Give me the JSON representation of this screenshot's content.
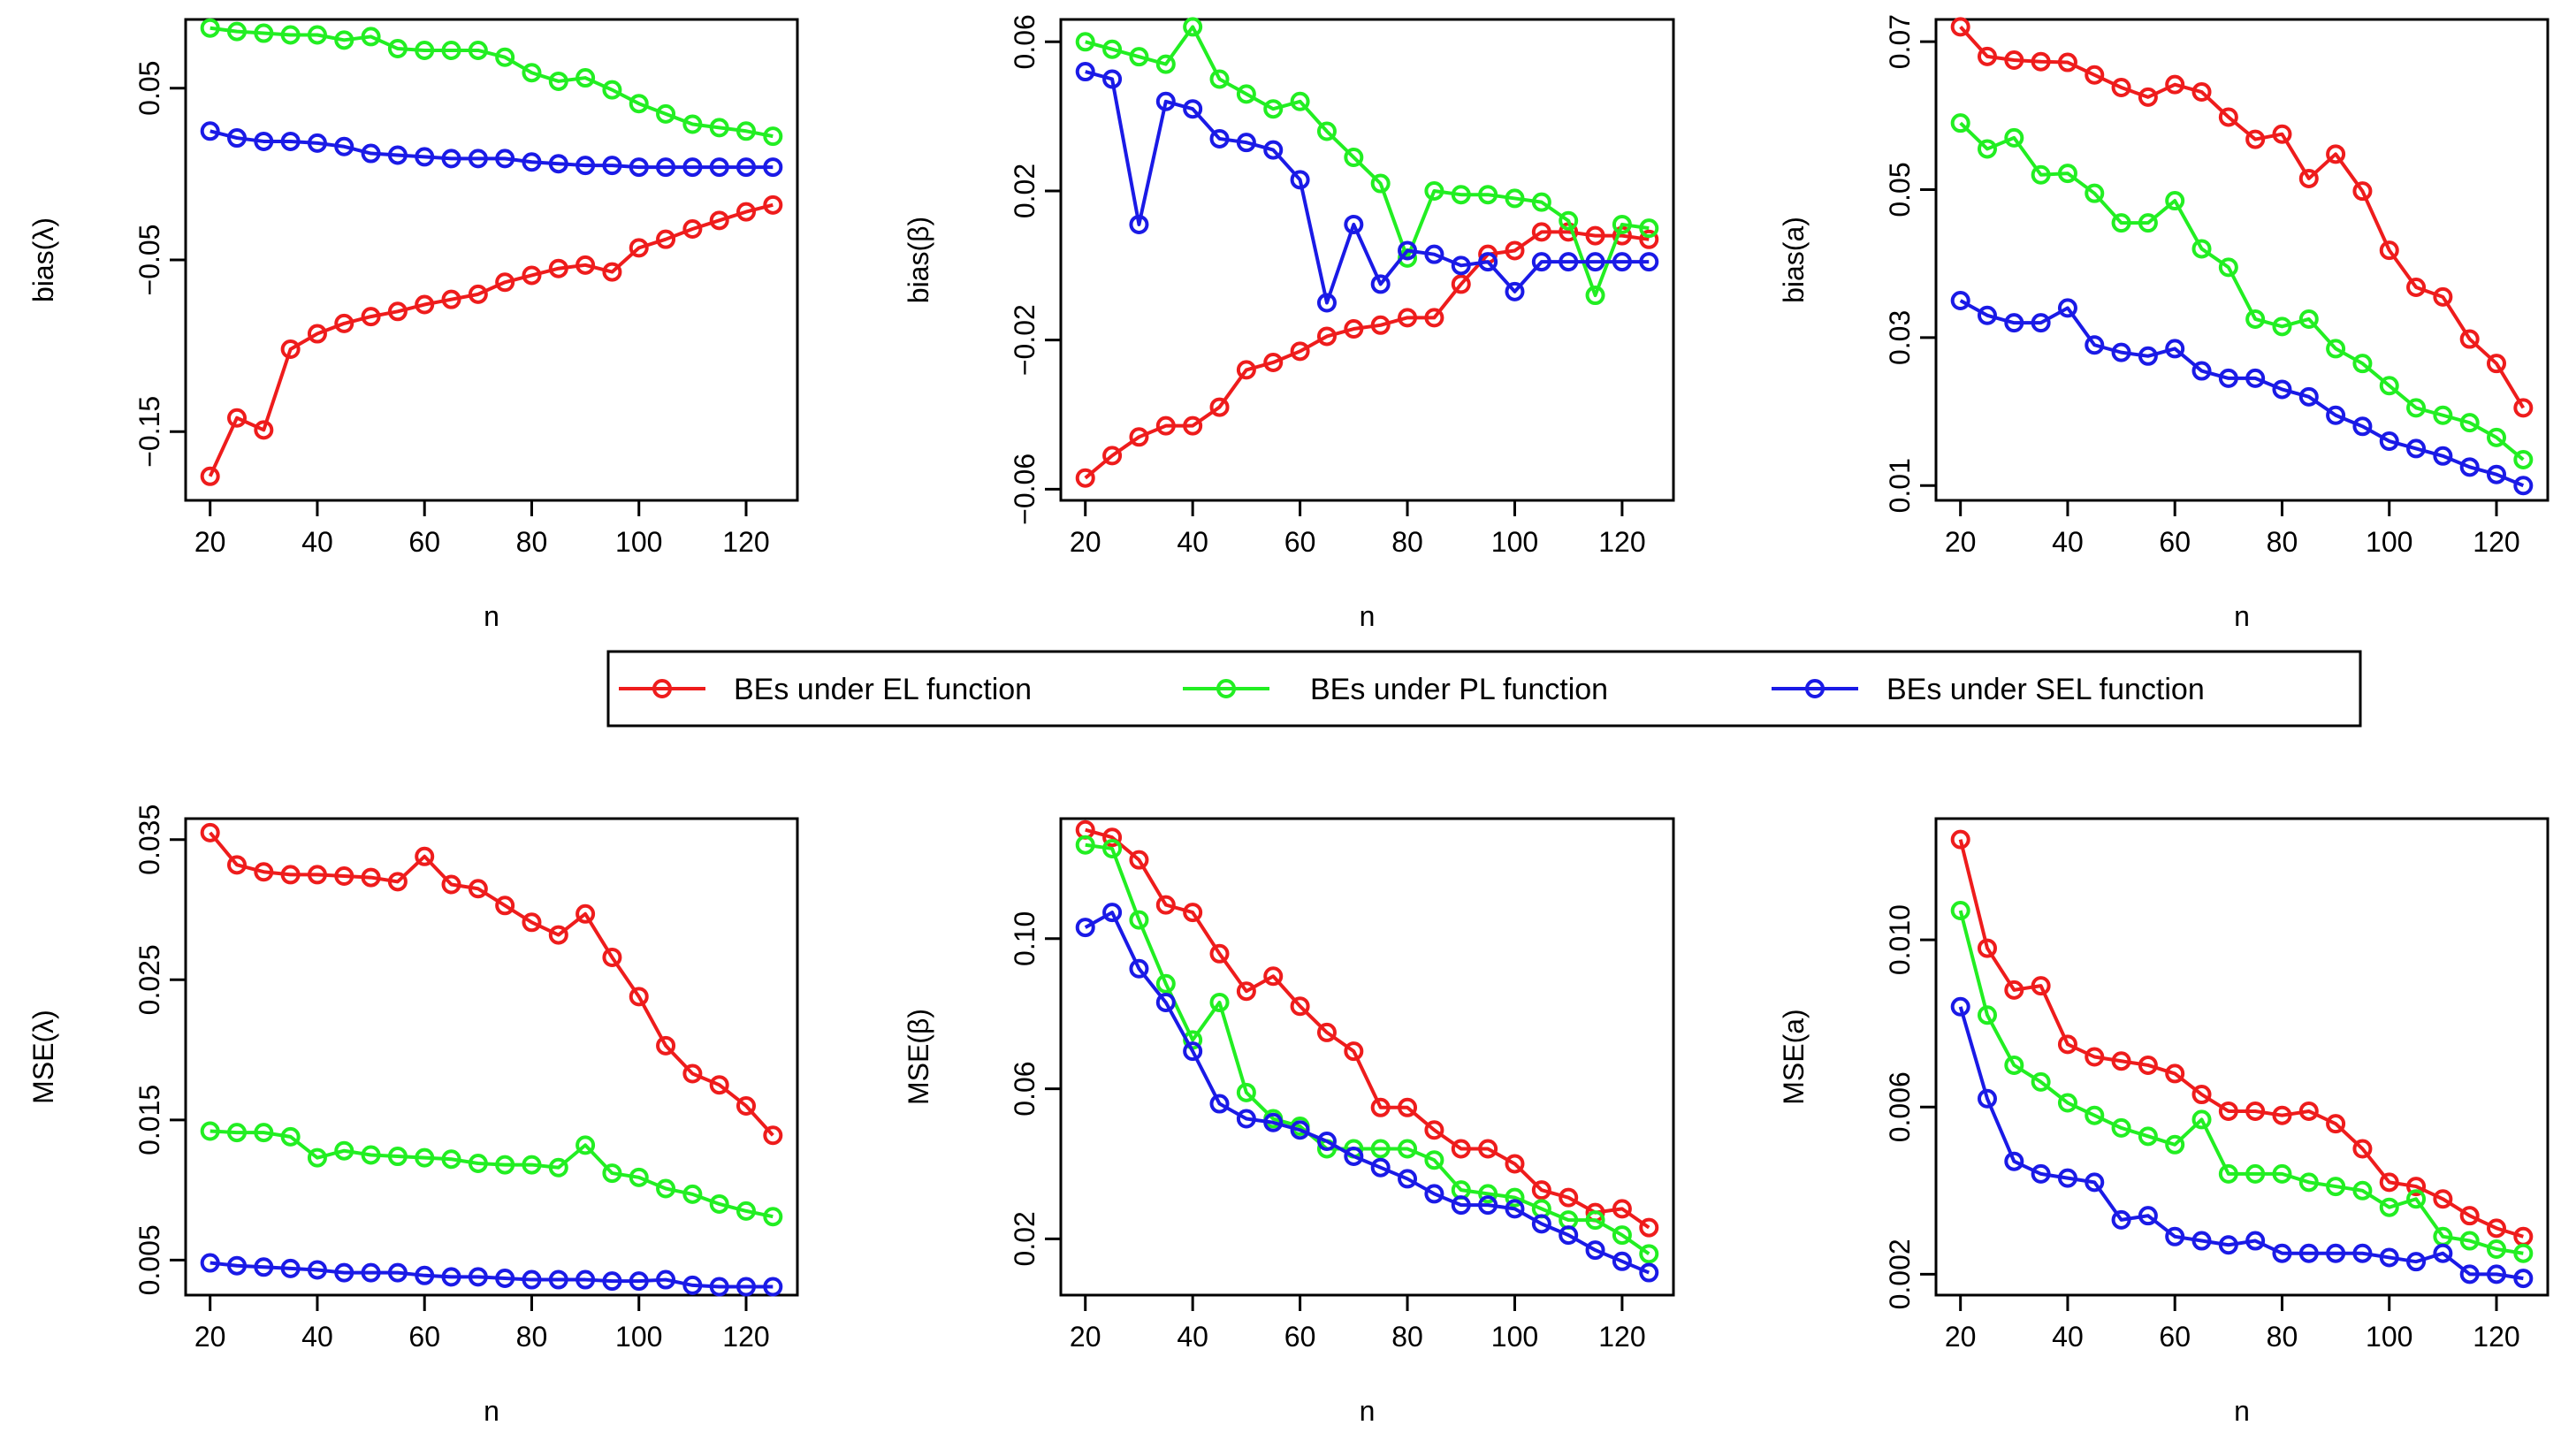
{
  "figure": {
    "legend": {
      "placement": "center",
      "entries": [
        {
          "label": "BEs under EL function",
          "color": "#ee1c1c"
        },
        {
          "label": "BEs under PL function",
          "color": "#22ee22"
        },
        {
          "label": "BEs under SEL function",
          "color": "#1a1ae6"
        }
      ]
    }
  },
  "chart_data": [
    {
      "type": "line",
      "xlabel": "n",
      "ylabel": "bias(λ)",
      "xlim": [
        20,
        125
      ],
      "ylim": [
        -0.19,
        0.09
      ],
      "xticks": [
        20,
        40,
        60,
        80,
        100,
        120
      ],
      "xticklabels": [
        "20",
        "40",
        "60",
        "80",
        "100",
        "120"
      ],
      "yticks": [
        0.05,
        -0.05,
        -0.15
      ],
      "yticklabels": [
        "0.05",
        "−0.05",
        "−0.15"
      ],
      "x": [
        20,
        25,
        30,
        35,
        40,
        45,
        50,
        55,
        60,
        65,
        70,
        75,
        80,
        85,
        90,
        95,
        100,
        105,
        110,
        115,
        120,
        125
      ],
      "series": [
        {
          "name": "BEs under EL function",
          "color": "#ee1c1c",
          "values": [
            -0.176,
            -0.142,
            -0.149,
            -0.102,
            -0.093,
            -0.087,
            -0.083,
            -0.08,
            -0.076,
            -0.073,
            -0.07,
            -0.063,
            -0.059,
            -0.055,
            -0.053,
            -0.057,
            -0.043,
            -0.038,
            -0.032,
            -0.027,
            -0.022,
            -0.018
          ]
        },
        {
          "name": "BEs under PL function",
          "color": "#22ee22",
          "values": [
            0.085,
            0.083,
            0.082,
            0.081,
            0.081,
            0.078,
            0.08,
            0.073,
            0.072,
            0.072,
            0.072,
            0.068,
            0.059,
            0.054,
            0.056,
            0.049,
            0.041,
            0.035,
            0.029,
            0.027,
            0.025,
            0.022
          ]
        },
        {
          "name": "BEs under SEL function",
          "color": "#1a1ae6",
          "values": [
            0.025,
            0.021,
            0.019,
            0.019,
            0.018,
            0.016,
            0.012,
            0.011,
            0.01,
            0.009,
            0.009,
            0.009,
            0.007,
            0.006,
            0.005,
            0.005,
            0.004,
            0.004,
            0.004,
            0.004,
            0.004,
            0.004
          ]
        }
      ]
    },
    {
      "type": "line",
      "xlabel": "n",
      "ylabel": "bias(β)",
      "xlim": [
        20,
        125
      ],
      "ylim": [
        -0.063,
        0.066
      ],
      "xticks": [
        20,
        40,
        60,
        80,
        100,
        120
      ],
      "xticklabels": [
        "20",
        "40",
        "60",
        "80",
        "100",
        "120"
      ],
      "yticks": [
        0.06,
        0.02,
        -0.02,
        -0.06
      ],
      "yticklabels": [
        "0.06",
        "0.02",
        "−0.02",
        "−0.06"
      ],
      "x": [
        20,
        25,
        30,
        35,
        40,
        45,
        50,
        55,
        60,
        65,
        70,
        75,
        80,
        85,
        90,
        95,
        100,
        105,
        110,
        115,
        120,
        125
      ],
      "series": [
        {
          "name": "BEs under EL function",
          "color": "#ee1c1c",
          "values": [
            -0.057,
            -0.051,
            -0.046,
            -0.043,
            -0.043,
            -0.038,
            -0.028,
            -0.026,
            -0.023,
            -0.019,
            -0.017,
            -0.016,
            -0.014,
            -0.014,
            -0.005,
            0.003,
            0.004,
            0.009,
            0.009,
            0.008,
            0.008,
            0.007
          ]
        },
        {
          "name": "BEs under PL function",
          "color": "#22ee22",
          "values": [
            0.06,
            0.058,
            0.056,
            0.054,
            0.064,
            0.05,
            0.046,
            0.042,
            0.044,
            0.036,
            0.029,
            0.022,
            0.002,
            0.02,
            0.019,
            0.019,
            0.018,
            0.017,
            0.012,
            -0.008,
            0.011,
            0.01
          ]
        },
        {
          "name": "BEs under SEL function",
          "color": "#1a1ae6",
          "values": [
            0.052,
            0.05,
            0.011,
            0.044,
            0.042,
            0.034,
            0.033,
            0.031,
            0.023,
            -0.01,
            0.011,
            -0.005,
            0.004,
            0.003,
            0.0,
            0.001,
            -0.007,
            0.001,
            0.001,
            0.001,
            0.001,
            0.001
          ]
        }
      ]
    },
    {
      "type": "line",
      "xlabel": "n",
      "ylabel": "bias(a)",
      "xlim": [
        20,
        125
      ],
      "ylim": [
        0.008,
        0.073
      ],
      "xticks": [
        20,
        40,
        60,
        80,
        100,
        120
      ],
      "xticklabels": [
        "20",
        "40",
        "60",
        "80",
        "100",
        "120"
      ],
      "yticks": [
        0.07,
        0.05,
        0.03,
        0.01
      ],
      "yticklabels": [
        "0.07",
        "0.05",
        "0.03",
        "0.01"
      ],
      "x": [
        20,
        25,
        30,
        35,
        40,
        45,
        50,
        55,
        60,
        65,
        70,
        75,
        80,
        85,
        90,
        95,
        100,
        105,
        110,
        115,
        120,
        125
      ],
      "series": [
        {
          "name": "BEs under EL function",
          "color": "#ee1c1c",
          "values": [
            0.072,
            0.068,
            0.0675,
            0.0673,
            0.0672,
            0.0655,
            0.0638,
            0.0625,
            0.0642,
            0.0632,
            0.0598,
            0.0568,
            0.0575,
            0.0515,
            0.0548,
            0.0498,
            0.0418,
            0.0368,
            0.0355,
            0.0298,
            0.0265,
            0.0205
          ]
        },
        {
          "name": "BEs under PL function",
          "color": "#22ee22",
          "values": [
            0.059,
            0.0555,
            0.057,
            0.052,
            0.0522,
            0.0495,
            0.0455,
            0.0455,
            0.0485,
            0.042,
            0.0395,
            0.0325,
            0.0315,
            0.0325,
            0.0285,
            0.0265,
            0.0235,
            0.0205,
            0.0195,
            0.0185,
            0.0165,
            0.0135
          ]
        },
        {
          "name": "BEs under SEL function",
          "color": "#1a1ae6",
          "values": [
            0.035,
            0.033,
            0.032,
            0.032,
            0.034,
            0.029,
            0.028,
            0.0275,
            0.0285,
            0.0255,
            0.0245,
            0.0245,
            0.023,
            0.022,
            0.0195,
            0.018,
            0.016,
            0.015,
            0.014,
            0.0125,
            0.0115,
            0.01
          ]
        }
      ]
    },
    {
      "type": "line",
      "xlabel": "n",
      "ylabel": "MSE(λ)",
      "xlim": [
        20,
        125
      ],
      "ylim": [
        0.0025,
        0.0365
      ],
      "xticks": [
        20,
        40,
        60,
        80,
        100,
        120
      ],
      "xticklabels": [
        "20",
        "40",
        "60",
        "80",
        "100",
        "120"
      ],
      "yticks": [
        0.035,
        0.025,
        0.015,
        0.005
      ],
      "yticklabels": [
        "0.035",
        "0.025",
        "0.015",
        "0.005"
      ],
      "x": [
        20,
        25,
        30,
        35,
        40,
        45,
        50,
        55,
        60,
        65,
        70,
        75,
        80,
        85,
        90,
        95,
        100,
        105,
        110,
        115,
        120,
        125
      ],
      "series": [
        {
          "name": "BEs under EL function",
          "color": "#ee1c1c",
          "values": [
            0.0355,
            0.0332,
            0.0327,
            0.0325,
            0.0325,
            0.0324,
            0.0323,
            0.032,
            0.0338,
            0.0318,
            0.0315,
            0.0303,
            0.0291,
            0.0282,
            0.0297,
            0.0266,
            0.0238,
            0.0203,
            0.0183,
            0.0175,
            0.016,
            0.0139
          ]
        },
        {
          "name": "BEs under PL function",
          "color": "#22ee22",
          "values": [
            0.0142,
            0.0141,
            0.0141,
            0.0138,
            0.0123,
            0.0128,
            0.0125,
            0.0124,
            0.0123,
            0.0122,
            0.0119,
            0.0118,
            0.0118,
            0.0116,
            0.0132,
            0.0112,
            0.0109,
            0.0101,
            0.0097,
            0.009,
            0.0085,
            0.0081
          ]
        },
        {
          "name": "BEs under SEL function",
          "color": "#1a1ae6",
          "values": [
            0.0048,
            0.0046,
            0.0045,
            0.0044,
            0.0043,
            0.0041,
            0.0041,
            0.0041,
            0.0039,
            0.0038,
            0.0038,
            0.0037,
            0.0036,
            0.0036,
            0.0036,
            0.0035,
            0.0035,
            0.0036,
            0.0032,
            0.0031,
            0.0031,
            0.0031
          ]
        }
      ]
    },
    {
      "type": "line",
      "xlabel": "n",
      "ylabel": "MSE(β)",
      "xlim": [
        20,
        125
      ],
      "ylim": [
        0.005,
        0.132
      ],
      "xticks": [
        20,
        40,
        60,
        80,
        100,
        120
      ],
      "xticklabels": [
        "20",
        "40",
        "60",
        "80",
        "100",
        "120"
      ],
      "yticks": [
        0.1,
        0.06,
        0.02
      ],
      "yticklabels": [
        "0.10",
        "0.06",
        "0.02"
      ],
      "x": [
        20,
        25,
        30,
        35,
        40,
        45,
        50,
        55,
        60,
        65,
        70,
        75,
        80,
        85,
        90,
        95,
        100,
        105,
        110,
        115,
        120,
        125
      ],
      "series": [
        {
          "name": "BEs under EL function",
          "color": "#ee1c1c",
          "values": [
            0.129,
            0.127,
            0.121,
            0.109,
            0.107,
            0.096,
            0.086,
            0.09,
            0.082,
            0.075,
            0.07,
            0.055,
            0.055,
            0.049,
            0.044,
            0.044,
            0.04,
            0.033,
            0.031,
            0.027,
            0.028,
            0.023
          ]
        },
        {
          "name": "BEs under PL function",
          "color": "#22ee22",
          "values": [
            0.125,
            0.124,
            0.105,
            0.088,
            0.073,
            0.083,
            0.059,
            0.052,
            0.05,
            0.044,
            0.044,
            0.044,
            0.044,
            0.041,
            0.033,
            0.032,
            0.031,
            0.028,
            0.025,
            0.025,
            0.021,
            0.016
          ]
        },
        {
          "name": "BEs under SEL function",
          "color": "#1a1ae6",
          "values": [
            0.103,
            0.107,
            0.092,
            0.083,
            0.07,
            0.056,
            0.052,
            0.051,
            0.049,
            0.046,
            0.042,
            0.039,
            0.036,
            0.032,
            0.029,
            0.029,
            0.028,
            0.024,
            0.021,
            0.017,
            0.014,
            0.011
          ]
        }
      ]
    },
    {
      "type": "line",
      "xlabel": "n",
      "ylabel": "MSE(a)",
      "xlim": [
        20,
        125
      ],
      "ylim": [
        0.0015,
        0.0129
      ],
      "xticks": [
        20,
        40,
        60,
        80,
        100,
        120
      ],
      "xticklabels": [
        "20",
        "40",
        "60",
        "80",
        "100",
        "120"
      ],
      "yticks": [
        0.01,
        0.006,
        0.002
      ],
      "yticklabels": [
        "0.010",
        "0.006",
        "0.002"
      ],
      "x": [
        20,
        25,
        30,
        35,
        40,
        45,
        50,
        55,
        60,
        65,
        70,
        75,
        80,
        85,
        90,
        95,
        100,
        105,
        110,
        115,
        120,
        125
      ],
      "series": [
        {
          "name": "BEs under EL function",
          "color": "#ee1c1c",
          "values": [
            0.0124,
            0.0098,
            0.0088,
            0.0089,
            0.0075,
            0.0072,
            0.0071,
            0.007,
            0.0068,
            0.0063,
            0.0059,
            0.0059,
            0.0058,
            0.0059,
            0.0056,
            0.005,
            0.0042,
            0.0041,
            0.0038,
            0.0034,
            0.0031,
            0.0029
          ]
        },
        {
          "name": "BEs under PL function",
          "color": "#22ee22",
          "values": [
            0.0107,
            0.0082,
            0.007,
            0.0066,
            0.0061,
            0.0058,
            0.0055,
            0.0053,
            0.0051,
            0.0057,
            0.0044,
            0.0044,
            0.0044,
            0.0042,
            0.0041,
            0.004,
            0.0036,
            0.0038,
            0.0029,
            0.0028,
            0.0026,
            0.0025
          ]
        },
        {
          "name": "BEs under SEL function",
          "color": "#1a1ae6",
          "values": [
            0.0084,
            0.0062,
            0.0047,
            0.0044,
            0.0043,
            0.0042,
            0.0033,
            0.0034,
            0.0029,
            0.0028,
            0.0027,
            0.0028,
            0.0025,
            0.0025,
            0.0025,
            0.0025,
            0.0024,
            0.0023,
            0.0025,
            0.002,
            0.002,
            0.0019
          ]
        }
      ]
    }
  ]
}
